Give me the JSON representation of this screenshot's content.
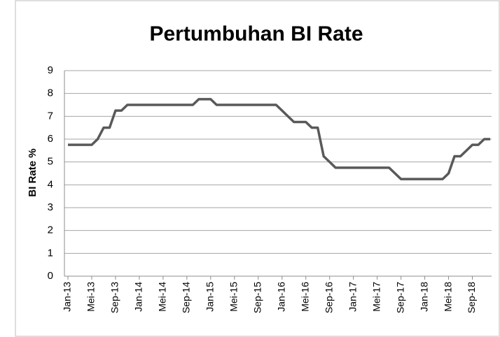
{
  "chart_data": {
    "type": "line",
    "title": "Pertumbuhan BI Rate",
    "y_label": "BI Rate %",
    "categories": [
      "Jan-13",
      null,
      null,
      null,
      "Mei-13",
      null,
      null,
      null,
      "Sep-13",
      null,
      null,
      null,
      "Jan-14",
      null,
      null,
      null,
      "Mei-14",
      null,
      null,
      null,
      "Sep-14",
      null,
      null,
      null,
      "Jan-15",
      null,
      null,
      null,
      "Mei-15",
      null,
      null,
      null,
      "Sep-15",
      null,
      null,
      null,
      "Jan-16",
      null,
      null,
      null,
      "Mei-16",
      null,
      null,
      null,
      "Sep-16",
      null,
      null,
      null,
      "Jan-17",
      null,
      null,
      null,
      "Mei-17",
      null,
      null,
      null,
      "Sep-17",
      null,
      null,
      null,
      "Jan-18",
      null,
      null,
      null,
      "Mei-18",
      null,
      null,
      null,
      "Sep-18",
      null,
      null,
      null
    ],
    "values": [
      5.75,
      5.75,
      5.75,
      5.75,
      5.75,
      6.0,
      6.5,
      6.5,
      7.25,
      7.25,
      7.5,
      7.5,
      7.5,
      7.5,
      7.5,
      7.5,
      7.5,
      7.5,
      7.5,
      7.5,
      7.5,
      7.5,
      7.75,
      7.75,
      7.75,
      7.5,
      7.5,
      7.5,
      7.5,
      7.5,
      7.5,
      7.5,
      7.5,
      7.5,
      7.5,
      7.5,
      7.25,
      7.0,
      6.75,
      6.75,
      6.75,
      6.5,
      6.5,
      5.25,
      5.0,
      4.75,
      4.75,
      4.75,
      4.75,
      4.75,
      4.75,
      4.75,
      4.75,
      4.75,
      4.75,
      4.5,
      4.25,
      4.25,
      4.25,
      4.25,
      4.25,
      4.25,
      4.25,
      4.25,
      4.5,
      5.25,
      5.25,
      5.5,
      5.75,
      5.75,
      6.0,
      6.0
    ],
    "color": "#595959",
    "ylim": [
      0,
      9
    ],
    "yticks": [
      0,
      1,
      2,
      3,
      4,
      5,
      6,
      7,
      8,
      9
    ],
    "grid": true
  }
}
